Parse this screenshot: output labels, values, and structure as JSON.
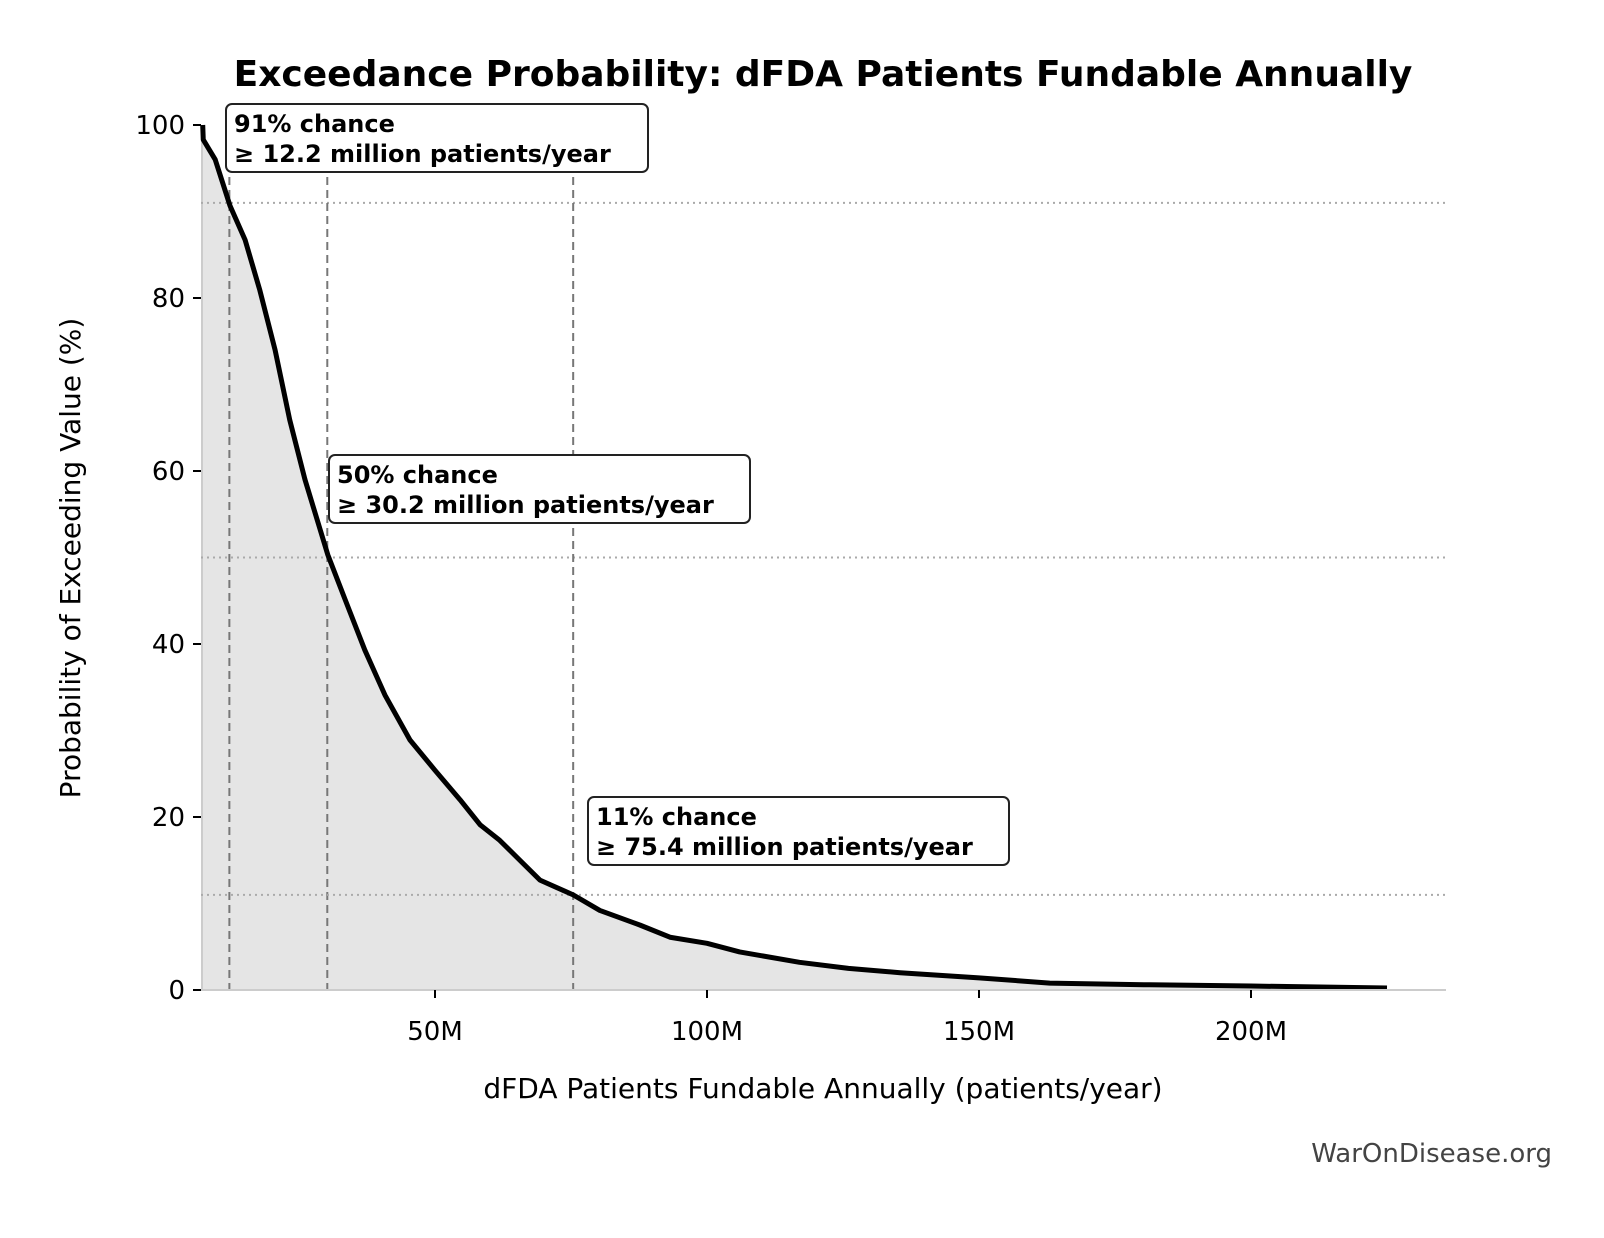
{
  "chart_data": {
    "type": "area",
    "title": "Exceedance Probability: dFDA Patients Fundable Annually",
    "xlabel": "dFDA Patients Fundable Annually (patients/year)",
    "ylabel": "Probability of Exceeding Value (%)",
    "xlim": [
      7000000,
      236000000
    ],
    "ylim": [
      0,
      100
    ],
    "x_ticks": [
      50000000,
      100000000,
      150000000,
      200000000
    ],
    "x_tick_labels": [
      "50M",
      "100M",
      "150M",
      "200M"
    ],
    "y_ticks": [
      0,
      20,
      40,
      60,
      80,
      100
    ],
    "y_tick_labels": [
      "0",
      "20",
      "40",
      "60",
      "80",
      "100"
    ],
    "grid": false,
    "series": [
      {
        "x": [
          7300000,
          7400000,
          9600000,
          12300000,
          15100000,
          17800000,
          20600000,
          23300000,
          26100000,
          28900000,
          30300000,
          33500000,
          37100000,
          40800000,
          45400000,
          50000000,
          54600000,
          58300000,
          61900000,
          65600000,
          69300000,
          75400000,
          80300000,
          87700000,
          93200000,
          100000000,
          106000000,
          117000000,
          126000000,
          135500000,
          150000000,
          163000000,
          181400000,
          200000000,
          225000000
        ],
        "y": [
          100,
          98.3,
          96,
          90.7,
          86.7,
          80.9,
          74,
          65.9,
          59,
          53.2,
          50.3,
          45.1,
          39.3,
          34.1,
          28.9,
          25.4,
          22,
          19.1,
          17.3,
          15,
          12.7,
          11,
          9.2,
          7.5,
          6.1,
          5.4,
          4.4,
          3.2,
          2.5,
          2.0,
          1.4,
          0.8,
          0.6,
          0.46,
          0.23
        ]
      }
    ],
    "colors": {
      "line": "#000000",
      "fill": "#e5e5e5",
      "reference": "#777777",
      "threshold": "#aaaaaa"
    },
    "annotations": [
      {
        "x": 12200000,
        "y": 91,
        "line1": "91% chance",
        "line2": "≥ 12.2 million patients/year"
      },
      {
        "x": 30200000,
        "y": 50,
        "line1": "50% chance",
        "line2": "≥ 30.2 million patients/year"
      },
      {
        "x": 75400000,
        "y": 11,
        "line1": "11% chance",
        "line2": "≥ 75.4 million patients/year"
      }
    ],
    "watermark": "WarOnDisease.org"
  }
}
